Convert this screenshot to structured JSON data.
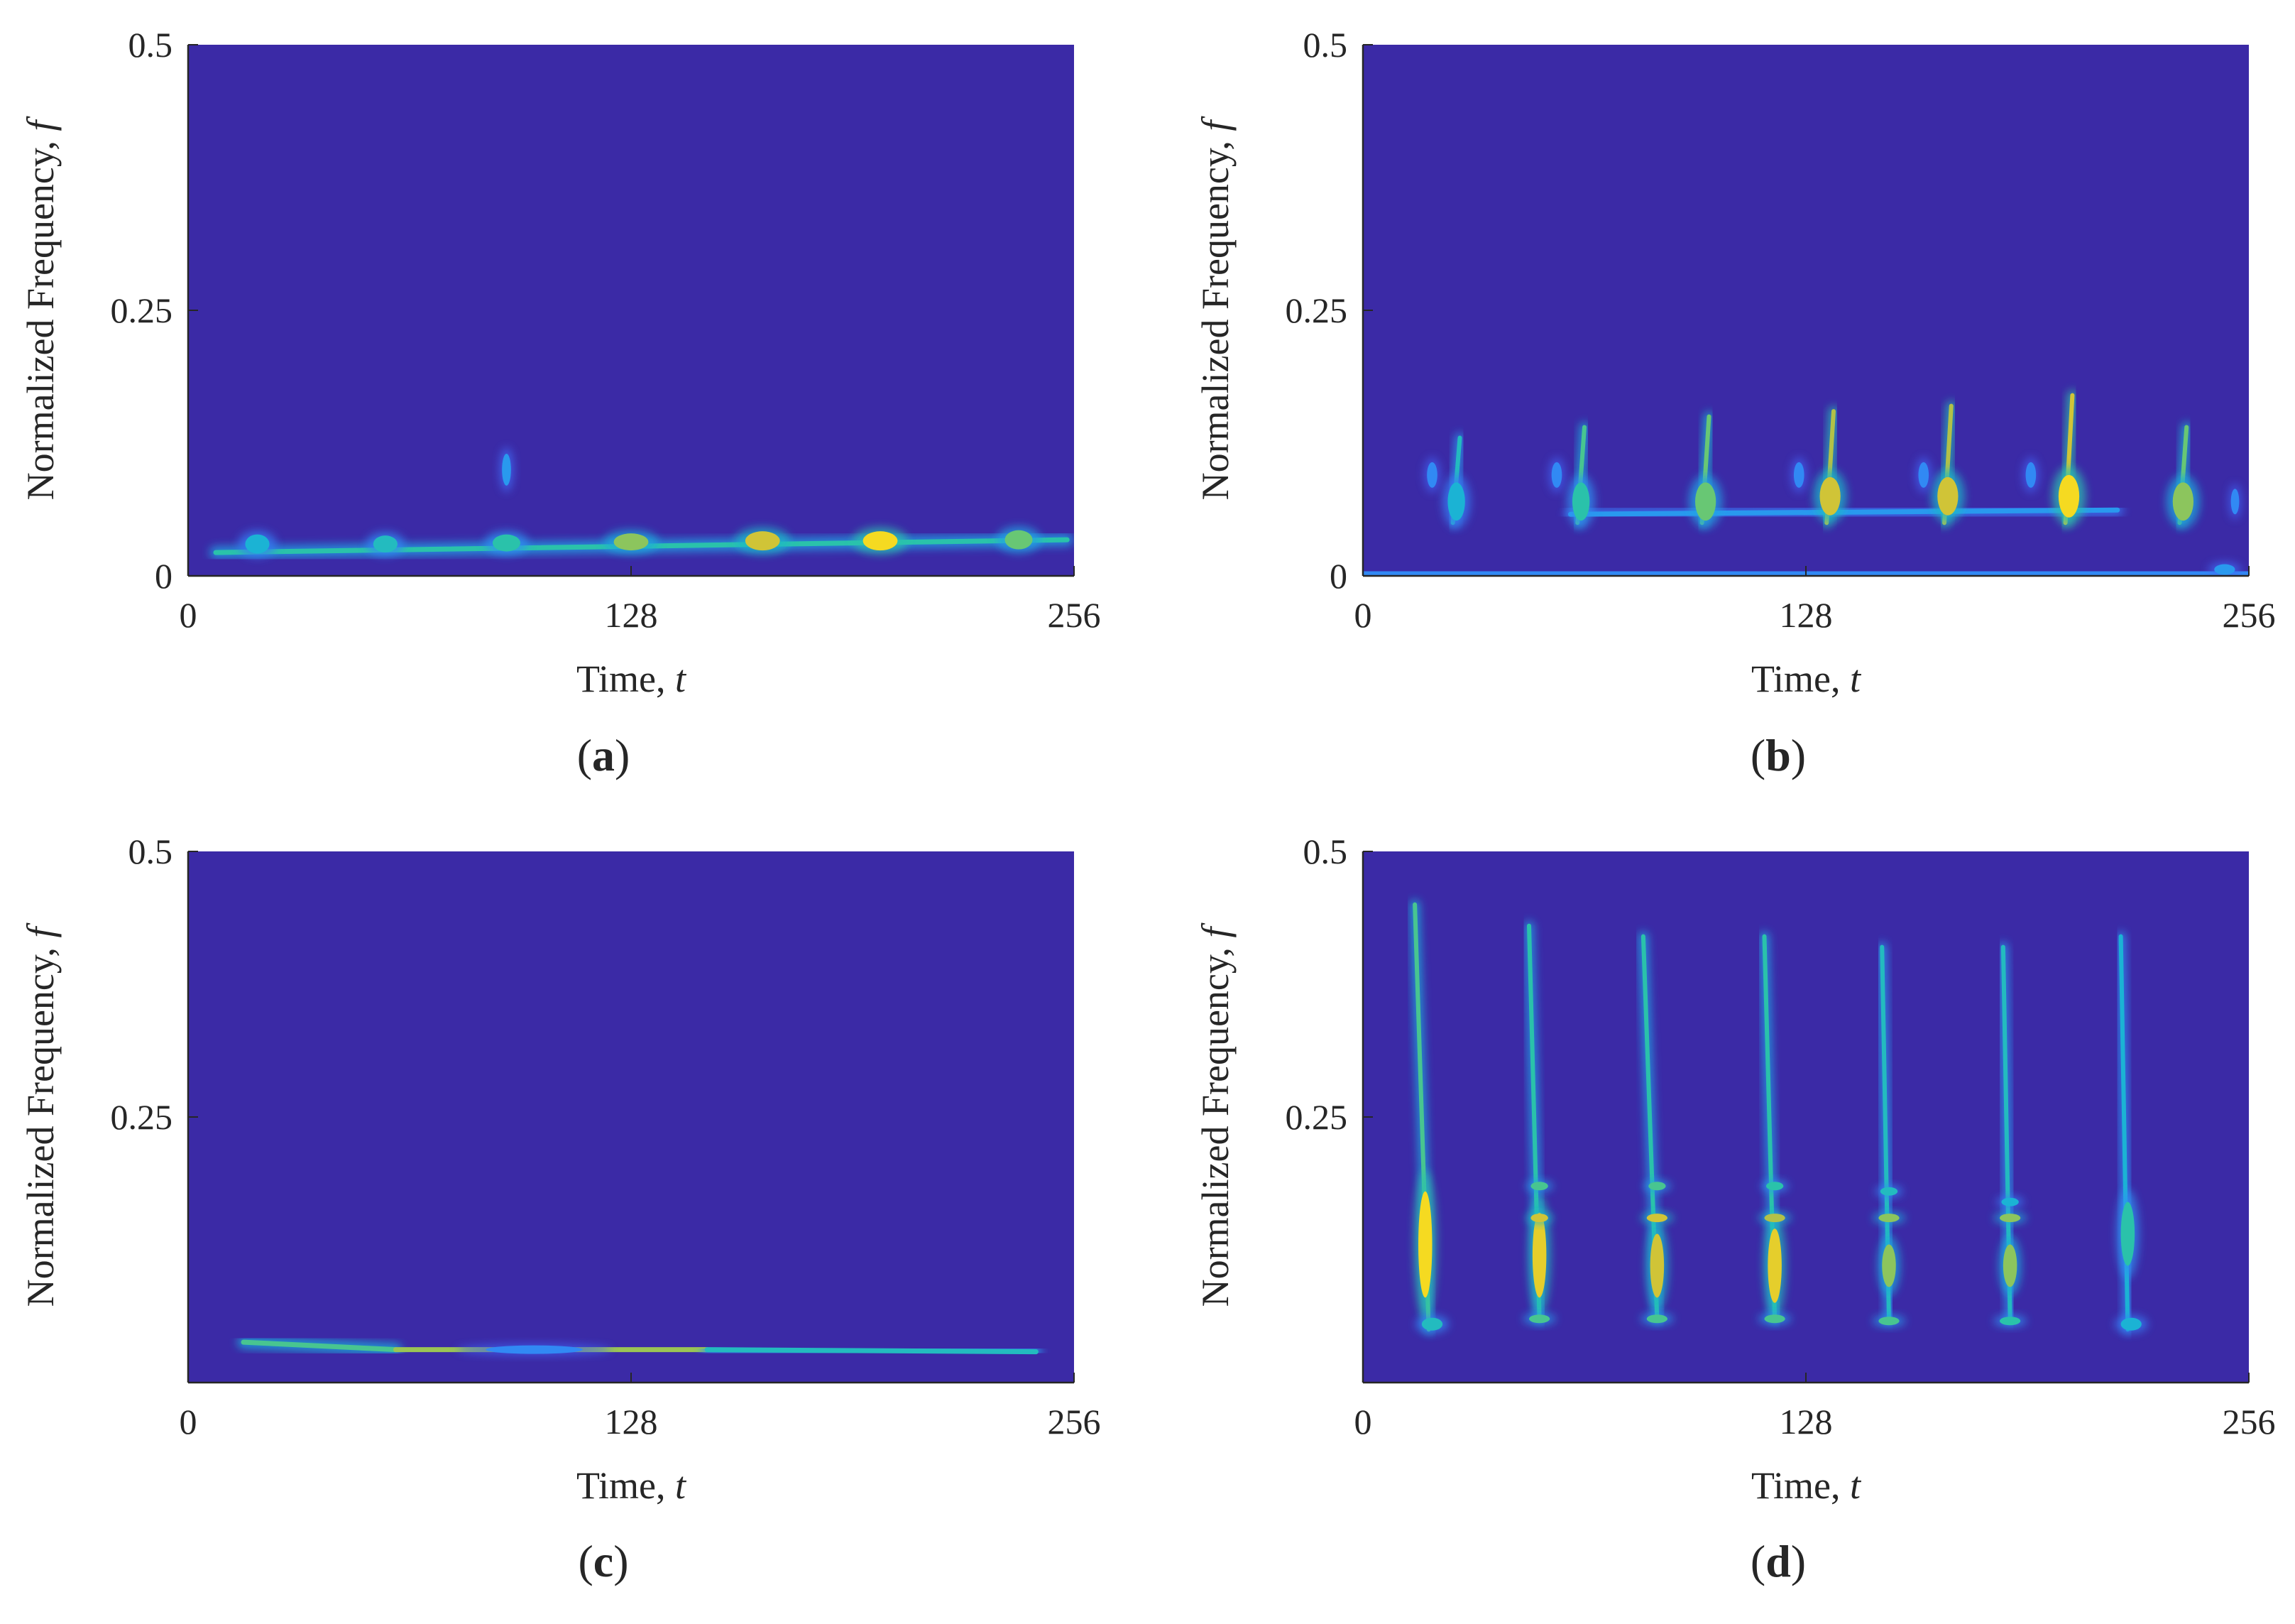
{
  "colors": {
    "background": "#3b2aa6",
    "axis": "#262626",
    "colormap": [
      "#3e26a8",
      "#4443d9",
      "#3e6ff7",
      "#2c94f2",
      "#1ab2d6",
      "#2bc3a8",
      "#73c86b",
      "#c7bf3c",
      "#f5d623",
      "#f9fb0e"
    ]
  },
  "chart_data": [
    {
      "type": "heatmap",
      "panel": "(a)",
      "panel_letter": "a",
      "xlabel": "Time, ",
      "xlabel_var": "t",
      "ylabel": "Normalized Frequency, ",
      "ylabel_var": "f",
      "xlim": [
        0,
        256
      ],
      "ylim": [
        0,
        0.5
      ],
      "xticks": [
        "0",
        "128",
        "256"
      ],
      "yticks": [
        "0",
        "0.25",
        "0.5"
      ],
      "ridges": [
        {
          "t_start": 8,
          "t_end": 254,
          "f_start": 0.022,
          "f_end": 0.034,
          "intensity": 0.55
        }
      ],
      "blobs": [
        {
          "t": 20,
          "f": 0.03,
          "dt": 3.5,
          "df": 0.009,
          "intensity": 0.45
        },
        {
          "t": 57,
          "f": 0.03,
          "dt": 3.5,
          "df": 0.008,
          "intensity": 0.5
        },
        {
          "t": 92,
          "f": 0.031,
          "dt": 4,
          "df": 0.008,
          "intensity": 0.55
        },
        {
          "t": 128,
          "f": 0.032,
          "dt": 5,
          "df": 0.008,
          "intensity": 0.7
        },
        {
          "t": 166,
          "f": 0.033,
          "dt": 5,
          "df": 0.009,
          "intensity": 0.8
        },
        {
          "t": 200,
          "f": 0.033,
          "dt": 5,
          "df": 0.009,
          "intensity": 0.9
        },
        {
          "t": 240,
          "f": 0.034,
          "dt": 4,
          "df": 0.009,
          "intensity": 0.65
        },
        {
          "t": 92,
          "f": 0.1,
          "dt": 1.3,
          "df": 0.015,
          "intensity": 0.35
        }
      ]
    },
    {
      "type": "heatmap",
      "panel": "(b)",
      "panel_letter": "b",
      "xlabel": "Time, ",
      "xlabel_var": "t",
      "ylabel": "Normalized Frequency, ",
      "ylabel_var": "f",
      "xlim": [
        0,
        256
      ],
      "ylim": [
        0,
        0.5
      ],
      "xticks": [
        "0",
        "128",
        "256"
      ],
      "yticks": [
        "0",
        "0.25",
        "0.5"
      ],
      "ridges": [
        {
          "t_start": 0,
          "t_end": 256,
          "f_start": 0.002,
          "f_end": 0.002,
          "intensity": 0.3
        },
        {
          "t_start": 60,
          "t_end": 218,
          "f_start": 0.058,
          "f_end": 0.062,
          "intensity": 0.35
        },
        {
          "t_start": 26,
          "t_end": 28,
          "f_start": 0.05,
          "f_end": 0.13,
          "intensity": 0.5
        },
        {
          "t_start": 62,
          "t_end": 64,
          "f_start": 0.05,
          "f_end": 0.14,
          "intensity": 0.6
        },
        {
          "t_start": 98,
          "t_end": 100,
          "f_start": 0.05,
          "f_end": 0.15,
          "intensity": 0.65
        },
        {
          "t_start": 134,
          "t_end": 136,
          "f_start": 0.05,
          "f_end": 0.155,
          "intensity": 0.75
        },
        {
          "t_start": 168,
          "t_end": 170,
          "f_start": 0.05,
          "f_end": 0.16,
          "intensity": 0.75
        },
        {
          "t_start": 203,
          "t_end": 205,
          "f_start": 0.05,
          "f_end": 0.17,
          "intensity": 0.8
        },
        {
          "t_start": 236,
          "t_end": 238,
          "f_start": 0.05,
          "f_end": 0.14,
          "intensity": 0.65
        }
      ],
      "blobs": [
        {
          "t": 27,
          "f": 0.07,
          "dt": 2.5,
          "df": 0.018,
          "intensity": 0.45
        },
        {
          "t": 63,
          "f": 0.07,
          "dt": 2.5,
          "df": 0.018,
          "intensity": 0.55
        },
        {
          "t": 99,
          "f": 0.07,
          "dt": 3,
          "df": 0.018,
          "intensity": 0.65
        },
        {
          "t": 135,
          "f": 0.075,
          "dt": 3,
          "df": 0.018,
          "intensity": 0.8
        },
        {
          "t": 169,
          "f": 0.075,
          "dt": 3,
          "df": 0.018,
          "intensity": 0.8
        },
        {
          "t": 204,
          "f": 0.075,
          "dt": 3,
          "df": 0.02,
          "intensity": 0.9
        },
        {
          "t": 237,
          "f": 0.07,
          "dt": 3,
          "df": 0.018,
          "intensity": 0.7
        },
        {
          "t": 20,
          "f": 0.095,
          "dt": 1.5,
          "df": 0.012,
          "intensity": 0.3
        },
        {
          "t": 56,
          "f": 0.095,
          "dt": 1.5,
          "df": 0.012,
          "intensity": 0.3
        },
        {
          "t": 126,
          "f": 0.095,
          "dt": 1.5,
          "df": 0.012,
          "intensity": 0.3
        },
        {
          "t": 162,
          "f": 0.095,
          "dt": 1.5,
          "df": 0.012,
          "intensity": 0.3
        },
        {
          "t": 193,
          "f": 0.095,
          "dt": 1.5,
          "df": 0.012,
          "intensity": 0.3
        },
        {
          "t": 252,
          "f": 0.07,
          "dt": 1.2,
          "df": 0.012,
          "intensity": 0.3
        },
        {
          "t": 249,
          "f": 0.006,
          "dt": 3,
          "df": 0.005,
          "intensity": 0.35
        }
      ]
    },
    {
      "type": "heatmap",
      "panel": "(c)",
      "panel_letter": "c",
      "xlabel": "Time, ",
      "xlabel_var": "t",
      "ylabel": "Normalized Frequency, ",
      "ylabel_var": "f",
      "xlim": [
        0,
        256
      ],
      "ylim": [
        0,
        0.5
      ],
      "xticks": [
        "0",
        "128",
        "256"
      ],
      "yticks": [
        "0.25",
        "0.5"
      ],
      "ridges": [
        {
          "t_start": 16,
          "t_end": 60,
          "f_start": 0.038,
          "f_end": 0.031,
          "intensity": 0.6
        },
        {
          "t_start": 60,
          "t_end": 150,
          "f_start": 0.031,
          "f_end": 0.031,
          "intensity": 0.72
        },
        {
          "t_start": 150,
          "t_end": 245,
          "f_start": 0.031,
          "f_end": 0.029,
          "intensity": 0.5
        }
      ],
      "blobs": [
        {
          "t": 100,
          "f": 0.031,
          "dt": 14,
          "df": 0.004,
          "intensity": 0.3
        }
      ]
    },
    {
      "type": "heatmap",
      "panel": "(d)",
      "panel_letter": "d",
      "xlabel": "Time, ",
      "xlabel_var": "t",
      "ylabel": "Normalized Frequency, ",
      "ylabel_var": "f",
      "xlim": [
        0,
        256
      ],
      "ylim": [
        0,
        0.5
      ],
      "xticks": [
        "0",
        "128",
        "256"
      ],
      "yticks": [
        "0.25",
        "0.5"
      ],
      "ridges": [
        {
          "t_start": 15,
          "t_end": 19,
          "f_start": 0.45,
          "f_end": 0.05,
          "intensity": 0.6
        },
        {
          "t_start": 48,
          "t_end": 51,
          "f_start": 0.43,
          "f_end": 0.06,
          "intensity": 0.55
        },
        {
          "t_start": 81,
          "t_end": 85,
          "f_start": 0.42,
          "f_end": 0.06,
          "intensity": 0.55
        },
        {
          "t_start": 116,
          "t_end": 119,
          "f_start": 0.42,
          "f_end": 0.06,
          "intensity": 0.55
        },
        {
          "t_start": 150,
          "t_end": 152,
          "f_start": 0.41,
          "f_end": 0.06,
          "intensity": 0.5
        },
        {
          "t_start": 185,
          "t_end": 187,
          "f_start": 0.41,
          "f_end": 0.06,
          "intensity": 0.5
        },
        {
          "t_start": 219,
          "t_end": 221,
          "f_start": 0.42,
          "f_end": 0.05,
          "intensity": 0.45
        }
      ],
      "blobs": [
        {
          "t": 18,
          "f": 0.13,
          "dt": 2,
          "df": 0.05,
          "intensity": 0.9
        },
        {
          "t": 51,
          "f": 0.12,
          "dt": 2,
          "df": 0.04,
          "intensity": 0.85
        },
        {
          "t": 85,
          "f": 0.11,
          "dt": 2,
          "df": 0.03,
          "intensity": 0.8
        },
        {
          "t": 119,
          "f": 0.11,
          "dt": 2,
          "df": 0.035,
          "intensity": 0.85
        },
        {
          "t": 152,
          "f": 0.11,
          "dt": 2,
          "df": 0.02,
          "intensity": 0.7
        },
        {
          "t": 187,
          "f": 0.11,
          "dt": 2,
          "df": 0.02,
          "intensity": 0.7
        },
        {
          "t": 221,
          "f": 0.14,
          "dt": 2,
          "df": 0.03,
          "intensity": 0.55
        },
        {
          "t": 51,
          "f": 0.155,
          "dt": 2.5,
          "df": 0.004,
          "intensity": 0.8
        },
        {
          "t": 85,
          "f": 0.155,
          "dt": 3,
          "df": 0.004,
          "intensity": 0.8
        },
        {
          "t": 119,
          "f": 0.155,
          "dt": 3,
          "df": 0.004,
          "intensity": 0.75
        },
        {
          "t": 152,
          "f": 0.155,
          "dt": 3,
          "df": 0.004,
          "intensity": 0.7
        },
        {
          "t": 187,
          "f": 0.155,
          "dt": 3,
          "df": 0.004,
          "intensity": 0.7
        },
        {
          "t": 51,
          "f": 0.185,
          "dt": 2.5,
          "df": 0.004,
          "intensity": 0.6
        },
        {
          "t": 85,
          "f": 0.185,
          "dt": 2.5,
          "df": 0.004,
          "intensity": 0.6
        },
        {
          "t": 119,
          "f": 0.185,
          "dt": 2.5,
          "df": 0.004,
          "intensity": 0.55
        },
        {
          "t": 152,
          "f": 0.18,
          "dt": 2.5,
          "df": 0.004,
          "intensity": 0.5
        },
        {
          "t": 187,
          "f": 0.17,
          "dt": 2.5,
          "df": 0.004,
          "intensity": 0.45
        },
        {
          "t": 51,
          "f": 0.06,
          "dt": 3,
          "df": 0.004,
          "intensity": 0.6
        },
        {
          "t": 85,
          "f": 0.06,
          "dt": 3,
          "df": 0.004,
          "intensity": 0.6
        },
        {
          "t": 119,
          "f": 0.06,
          "dt": 3,
          "df": 0.004,
          "intensity": 0.6
        },
        {
          "t": 152,
          "f": 0.058,
          "dt": 3,
          "df": 0.004,
          "intensity": 0.6
        },
        {
          "t": 187,
          "f": 0.058,
          "dt": 3,
          "df": 0.004,
          "intensity": 0.55
        },
        {
          "t": 20,
          "f": 0.055,
          "dt": 3,
          "df": 0.006,
          "intensity": 0.5
        },
        {
          "t": 222,
          "f": 0.055,
          "dt": 3,
          "df": 0.006,
          "intensity": 0.45
        }
      ]
    }
  ]
}
